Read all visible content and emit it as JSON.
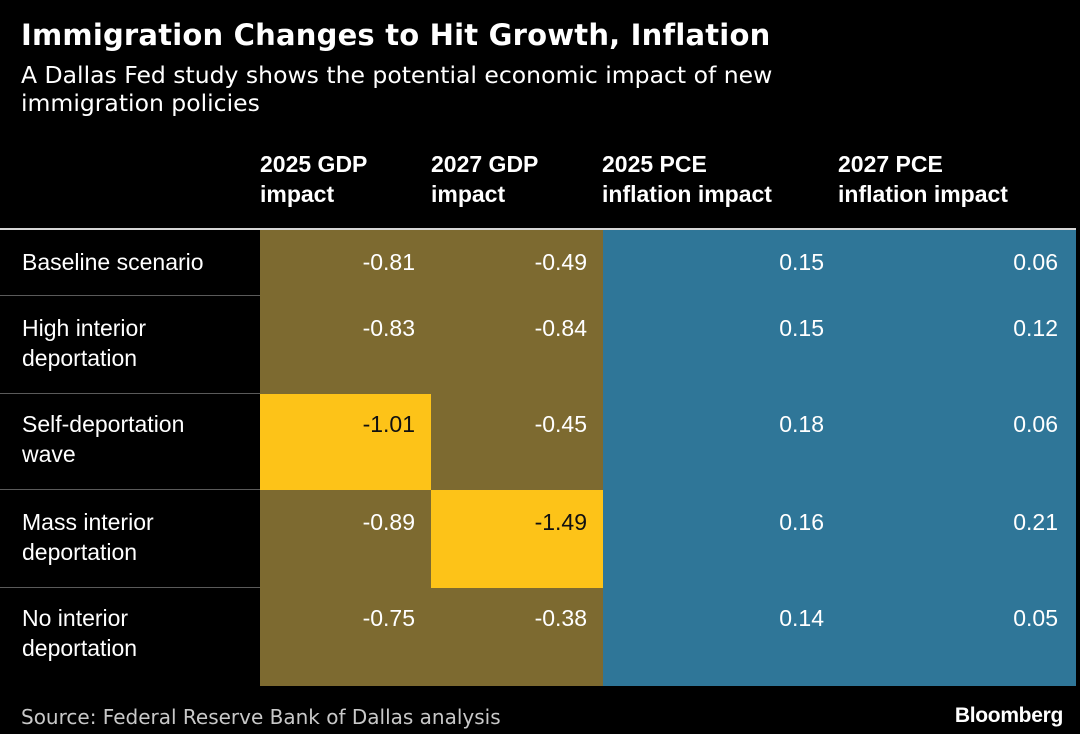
{
  "colors": {
    "background": "#000000",
    "gdp_cell": "#7d6a30",
    "gdp_highlight": "#fdc318",
    "pce_cell": "#2f7698",
    "text": "#ffffff",
    "highlight_text": "#111111"
  },
  "chart_data": {
    "type": "table",
    "title": "Immigration Changes to Hit Growth, Inflation",
    "subtitle": "A Dallas Fed study shows the potential economic impact of new immigration policies",
    "columns": [
      {
        "line1": "2025 GDP",
        "line2": "impact"
      },
      {
        "line1": "2027 GDP",
        "line2": "impact"
      },
      {
        "line1": "2025 PCE",
        "line2": "inflation impact"
      },
      {
        "line1": "2027 PCE",
        "line2": "inflation impact"
      }
    ],
    "rows": [
      {
        "line1": "Baseline scenario",
        "line2": "",
        "values": [
          "-0.81",
          "-0.49",
          "0.15",
          "0.06"
        ],
        "highlight": [
          false,
          false,
          false,
          false
        ]
      },
      {
        "line1": "High interior",
        "line2": "deportation",
        "values": [
          "-0.83",
          "-0.84",
          "0.15",
          "0.12"
        ],
        "highlight": [
          false,
          false,
          false,
          false
        ]
      },
      {
        "line1": "Self-deportation",
        "line2": "wave",
        "values": [
          "-1.01",
          "-0.45",
          "0.18",
          "0.06"
        ],
        "highlight": [
          true,
          false,
          false,
          false
        ]
      },
      {
        "line1": "Mass interior",
        "line2": "deportation",
        "values": [
          "-0.89",
          "-1.49",
          "0.16",
          "0.21"
        ],
        "highlight": [
          false,
          true,
          false,
          false
        ]
      },
      {
        "line1": "No interior",
        "line2": "deportation",
        "values": [
          "-0.75",
          "-0.38",
          "0.14",
          "0.05"
        ],
        "highlight": [
          false,
          false,
          false,
          false
        ]
      }
    ],
    "source": "Source: Federal Reserve Bank of Dallas analysis"
  },
  "branding": {
    "logo_text": "Bloomberg"
  }
}
